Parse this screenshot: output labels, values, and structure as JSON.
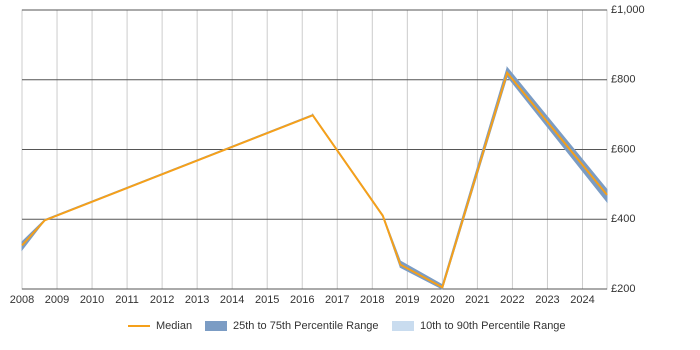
{
  "chart_data": {
    "type": "line",
    "x": [
      2008.0,
      2008.65,
      2016.3,
      2018.3,
      2018.8,
      2020.0,
      2021.85,
      2024.7
    ],
    "series": [
      {
        "name": "Median",
        "color": "#f5a01a",
        "values": [
          325,
          397,
          698,
          410,
          270,
          205,
          820,
          470
        ]
      },
      {
        "name": "25th to 75th Percentile Range",
        "color": "#7b9cc4",
        "lower": [
          312,
          397,
          698,
          408,
          262,
          200,
          810,
          450
        ],
        "upper": [
          335,
          399,
          700,
          412,
          280,
          212,
          835,
          485
        ]
      },
      {
        "name": "10th to 90th Percentile Range",
        "color": "#c9dcef",
        "lower": [
          312,
          397,
          698,
          408,
          262,
          200,
          810,
          450
        ],
        "upper": [
          335,
          399,
          700,
          412,
          280,
          212,
          835,
          485
        ]
      }
    ],
    "xlim": [
      2008,
      2024.7
    ],
    "xticks": [
      2008,
      2009,
      2010,
      2011,
      2012,
      2013,
      2014,
      2015,
      2016,
      2017,
      2018,
      2019,
      2020,
      2021,
      2022,
      2023,
      2024
    ],
    "ylim": [
      200,
      1000
    ],
    "yticks": [
      {
        "value": 200,
        "label": "£200"
      },
      {
        "value": 400,
        "label": "£400"
      },
      {
        "value": 600,
        "label": "£600"
      },
      {
        "value": 800,
        "label": "£800"
      },
      {
        "value": 1000,
        "label": "£1,000"
      }
    ],
    "grid": true,
    "legend": "bottom"
  }
}
